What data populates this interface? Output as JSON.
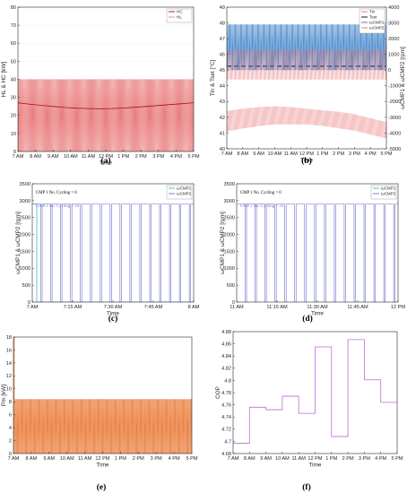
{
  "figure": {
    "panel_letters": [
      "(a)",
      "(b)",
      "(c)",
      "(d)",
      "(e)",
      "(f)"
    ]
  },
  "chart_data": [
    {
      "panel": "(a)",
      "type": "line",
      "xlabel": "Time",
      "ylabel": "HL & HC [kW]",
      "ylim": [
        0,
        80
      ],
      "yticks": [
        "0",
        "10",
        "20",
        "30",
        "40",
        "50",
        "60",
        "70",
        "80"
      ],
      "xticks": [
        "7 AM",
        "8 AM",
        "9 AM",
        "10 AM",
        "11 AM",
        "12 PM",
        "1 PM",
        "2 PM",
        "3 PM",
        "4 PM",
        "5 PM"
      ],
      "legend": [
        {
          "label": "HC",
          "color": "#a01818"
        },
        {
          "label": "HL",
          "color": "#e88a8a"
        }
      ],
      "series": [
        {
          "name": "HC",
          "color": "#e66b6b",
          "style": "cycling",
          "low": 0,
          "high": 40,
          "cycles": 190
        },
        {
          "name": "HL",
          "color": "#a01818",
          "values": [
            27,
            26.2,
            25.6,
            25,
            24.4,
            24,
            23.8,
            23.7,
            23.8,
            24.1,
            24.5,
            25,
            25.5,
            26,
            26.5,
            27
          ]
        }
      ]
    },
    {
      "panel": "(b)",
      "type": "line",
      "xlabel": "Time",
      "ylabel": "T_in & T_set [°C]",
      "ylabel_right": "ω_CMP1 & ω_CMP2 [rpm]",
      "ylim": [
        40,
        49
      ],
      "ylim_right": [
        -5000,
        4000
      ],
      "yticks": [
        "40",
        "41",
        "42",
        "43",
        "44",
        "45",
        "46",
        "47",
        "48",
        "49"
      ],
      "yticks_right": [
        "-5000",
        "-4000",
        "-3000",
        "-2000",
        "-1000",
        "0",
        "1000",
        "2000",
        "3000",
        "4000"
      ],
      "xticks": [
        "7 AM",
        "8 AM",
        "9 AM",
        "10 AM",
        "11 AM",
        "12 PM",
        "1 PM",
        "2 PM",
        "3 PM",
        "4 PM",
        "5 PM"
      ],
      "legend": [
        {
          "label": "T_in",
          "color": "#e66b6b"
        },
        {
          "label": "T_set",
          "color": "#000000"
        },
        {
          "label": "ω_CMP1",
          "color": "#2f78c4"
        },
        {
          "label": "ω_CMP2",
          "color": "#e66b6b"
        }
      ],
      "series": [
        {
          "name": "T_set",
          "color": "#000000",
          "dashed": true,
          "values": [
            45.25,
            45.25
          ]
        },
        {
          "name": "ω_CMP1",
          "axis": "right",
          "color": "#2f78c4",
          "style": "cycling",
          "low": 0,
          "high": 2900
        },
        {
          "name": "T_in band",
          "color": "#e66b6b",
          "style": "band",
          "low": 44.4,
          "high": 46.3
        },
        {
          "name": "ω_CMP2 band",
          "axis": "right",
          "color": "#e66b6b",
          "style": "band-curve",
          "upper": [
            -2600,
            -2450,
            -2350,
            -2300,
            -2350,
            -2450,
            -2550,
            -2650,
            -2800,
            -3050,
            -3300
          ],
          "lower": [
            -3900,
            -3700,
            -3550,
            -3450,
            -3450,
            -3450,
            -3550,
            -3700,
            -3850,
            -4100,
            -4350
          ]
        }
      ]
    },
    {
      "panel": "(c)",
      "type": "line",
      "xlabel": "Time",
      "ylabel": "ω_CMP1 & ω_CMP2 [rpm]",
      "ylim": [
        0,
        3500
      ],
      "yticks": [
        "0",
        "500",
        "1000",
        "1500",
        "2000",
        "2500",
        "3000",
        "3500"
      ],
      "xticks": [
        "7 AM",
        "7:15 AM",
        "7:30 AM",
        "7:45 AM",
        "8 AM"
      ],
      "annotations": [
        {
          "text": "CMP 1 No. Cycling = 0",
          "color": "#000000"
        },
        {
          "text": "CMP 2 No. Cycling = 16",
          "color": "#6f6fd0"
        }
      ],
      "legend": [
        {
          "label": "ω_CMP1",
          "color": "#4fb0c6"
        },
        {
          "label": "ω_CMP2",
          "color": "#6f6fd0"
        }
      ],
      "series": [
        {
          "name": "ω_CMP1",
          "color": "#4fb0c6",
          "style": "step",
          "values": [
            2900,
            2900,
            0,
            0
          ]
        },
        {
          "name": "ω_CMP2",
          "color": "#6f6fd0",
          "style": "square",
          "high": 2900,
          "low": 0,
          "cycles": 16
        }
      ]
    },
    {
      "panel": "(d)",
      "type": "line",
      "xlabel": "Time",
      "ylabel": "ω_CMP1 & ω_CMP2 [rpm]",
      "ylim": [
        0,
        3500
      ],
      "yticks": [
        "0",
        "500",
        "1000",
        "1500",
        "2000",
        "2500",
        "3000",
        "3500"
      ],
      "xticks": [
        "11 AM",
        "11:15 AM",
        "11:30 AM",
        "11:45 AM",
        "12 PM"
      ],
      "annotations": [
        {
          "text": "CMP 1 No. Cycling = 0",
          "color": "#000000"
        },
        {
          "text": "CMP 2 No. Cycling = 16",
          "color": "#6f6fd0"
        }
      ],
      "legend": [
        {
          "label": "ω_CMP1",
          "color": "#4fb0c6"
        },
        {
          "label": "ω_CMP2",
          "color": "#6f6fd0"
        }
      ],
      "series": [
        {
          "name": "ω_CMP2",
          "color": "#6f6fd0",
          "style": "square",
          "high": 2900,
          "low": 0,
          "cycles": 16
        }
      ]
    },
    {
      "panel": "(e)",
      "type": "line",
      "xlabel": "Time",
      "ylabel": "Pm [kW]",
      "ylim": [
        0,
        18
      ],
      "yticks": [
        "0",
        "2",
        "4",
        "6",
        "8",
        "10",
        "12",
        "14",
        "16",
        "18"
      ],
      "xticks": [
        "7 AM",
        "8 AM",
        "9 AM",
        "10 AM",
        "11 AM",
        "12 PM",
        "1 PM",
        "2 PM",
        "3 PM",
        "4 PM",
        "5 PM"
      ],
      "series": [
        {
          "name": "Pm",
          "color": "#e8742e",
          "style": "cycling",
          "low": 0,
          "high": 8.4,
          "spike": 18,
          "cycles": 220
        }
      ]
    },
    {
      "panel": "(f)",
      "type": "line",
      "xlabel": "Time",
      "ylabel": "COP",
      "ylim": [
        4.68,
        4.88
      ],
      "yticks": [
        "4.68",
        "4.7",
        "4.72",
        "4.74",
        "4.76",
        "4.78",
        "4.8",
        "4.82",
        "4.84",
        "4.86",
        "4.88"
      ],
      "xticks": [
        "7 AM",
        "8 AM",
        "9 AM",
        "10 AM",
        "11 AM",
        "12 PM",
        "1 PM",
        "2 PM",
        "3 PM",
        "4 PM",
        "5 PM"
      ],
      "series": [
        {
          "name": "COP",
          "color": "#c366d9",
          "style": "step",
          "values": [
            4.697,
            4.756,
            4.752,
            4.774,
            4.746,
            4.855,
            4.708,
            4.867,
            4.801,
            4.764
          ]
        }
      ]
    }
  ]
}
